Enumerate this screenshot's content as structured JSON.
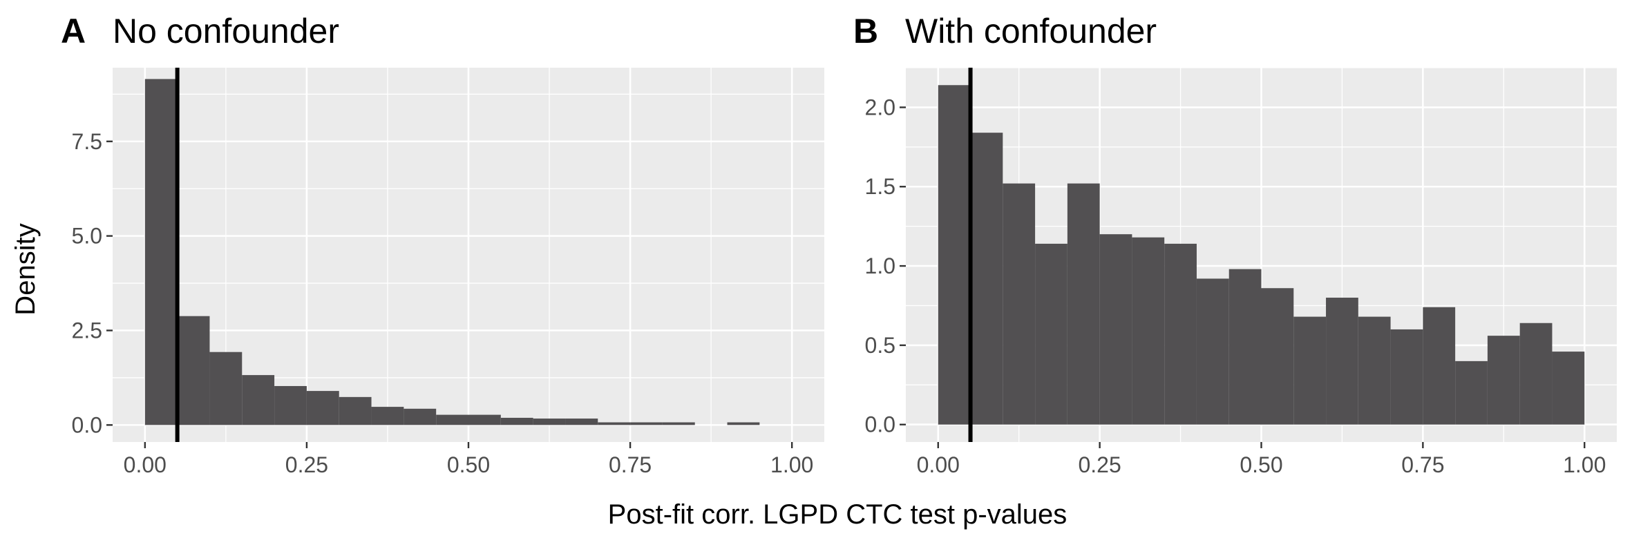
{
  "figure": {
    "xlabel": "Post-fit corr. LGPD CTC test p-values",
    "ylabel": "Density"
  },
  "colors": {
    "panel_background": "#ebebeb",
    "grid_major": "#ffffff",
    "bar_fill": "#525052",
    "reference_line": "#000000",
    "tick_text": "#4d4d4d"
  },
  "chart_data": [
    {
      "type": "bar",
      "panel_tag": "A",
      "title": "No confounder",
      "xlim": [
        -0.05,
        1.05
      ],
      "ylim": [
        -0.45,
        9.45
      ],
      "x_ticks": [
        0,
        0.25,
        0.5,
        0.75,
        1
      ],
      "x_tick_labels": [
        "0.00",
        "0.25",
        "0.50",
        "0.75",
        "1.00"
      ],
      "y_ticks": [
        0,
        2.5,
        5,
        7.5
      ],
      "y_tick_labels": [
        "0.0",
        "2.5",
        "5.0",
        "7.5"
      ],
      "bin_width": 0.05,
      "bin_starts": [
        0.0,
        0.05,
        0.1,
        0.15,
        0.2,
        0.25,
        0.3,
        0.35,
        0.4,
        0.45,
        0.5,
        0.55,
        0.6,
        0.65,
        0.7,
        0.75,
        0.8,
        0.85,
        0.9,
        0.95
      ],
      "values": [
        9.15,
        2.88,
        1.93,
        1.32,
        1.03,
        0.9,
        0.74,
        0.48,
        0.43,
        0.27,
        0.27,
        0.19,
        0.17,
        0.17,
        0.07,
        0.07,
        0.07,
        0.0,
        0.07,
        0.0
      ],
      "reference_line_x": 0.05,
      "grid": true
    },
    {
      "type": "bar",
      "panel_tag": "B",
      "title": "With confounder",
      "xlim": [
        -0.05,
        1.05
      ],
      "ylim": [
        -0.11,
        2.25
      ],
      "x_ticks": [
        0,
        0.25,
        0.5,
        0.75,
        1
      ],
      "x_tick_labels": [
        "0.00",
        "0.25",
        "0.50",
        "0.75",
        "1.00"
      ],
      "y_ticks": [
        0,
        0.5,
        1,
        1.5,
        2
      ],
      "y_tick_labels": [
        "0.0",
        "0.5",
        "1.0",
        "1.5",
        "2.0"
      ],
      "bin_width": 0.05,
      "bin_starts": [
        0.0,
        0.05,
        0.1,
        0.15,
        0.2,
        0.25,
        0.3,
        0.35,
        0.4,
        0.45,
        0.5,
        0.55,
        0.6,
        0.65,
        0.7,
        0.75,
        0.8,
        0.85,
        0.9,
        0.95
      ],
      "values": [
        2.14,
        1.84,
        1.52,
        1.14,
        1.52,
        1.2,
        1.18,
        1.14,
        0.92,
        0.98,
        0.86,
        0.68,
        0.8,
        0.68,
        0.6,
        0.74,
        0.4,
        0.56,
        0.64,
        0.46
      ],
      "reference_line_x": 0.05,
      "grid": true
    }
  ]
}
